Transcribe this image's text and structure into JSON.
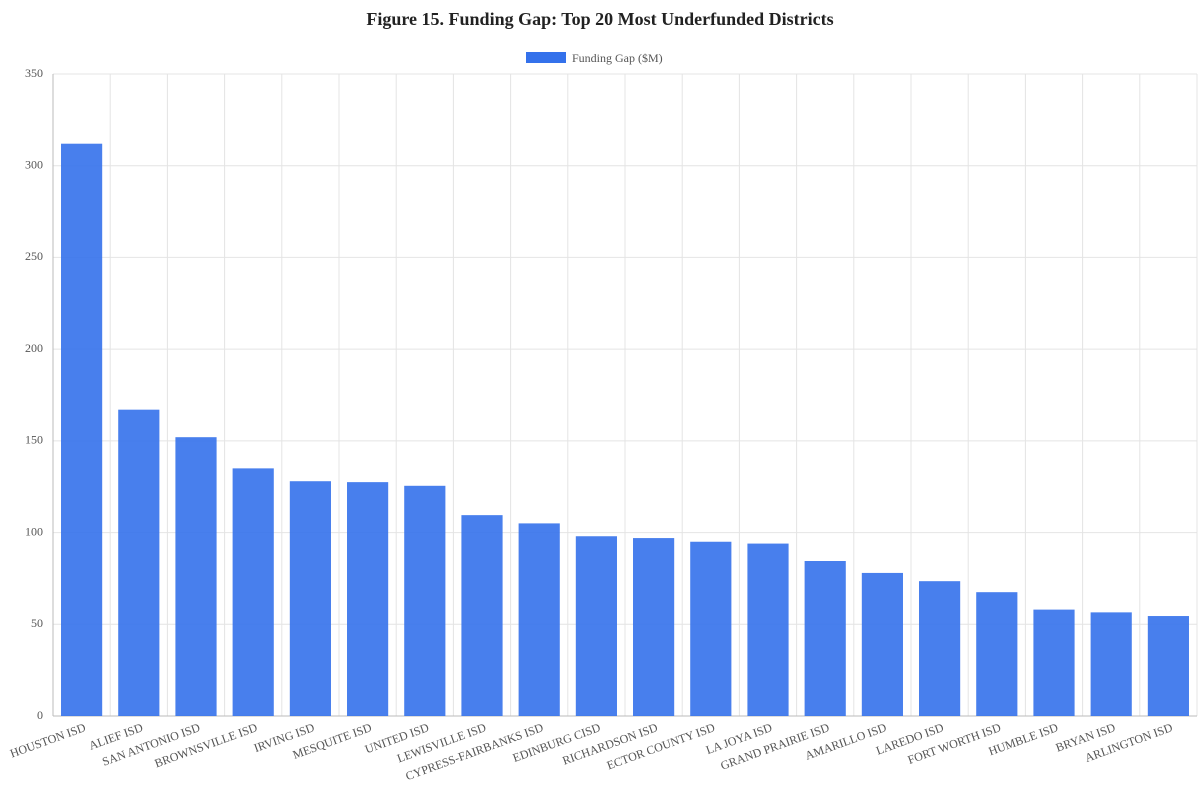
{
  "chart_data": {
    "type": "bar",
    "title": "Figure 15. Funding Gap: Top 20 Most Underfunded Districts",
    "categories": [
      "HOUSTON ISD",
      "ALIEF ISD",
      "SAN ANTONIO ISD",
      "BROWNSVILLE ISD",
      "IRVING ISD",
      "MESQUITE ISD",
      "UNITED ISD",
      "LEWISVILLE ISD",
      "CYPRESS-FAIRBANKS ISD",
      "EDINBURG CISD",
      "RICHARDSON ISD",
      "ECTOR COUNTY ISD",
      "LA JOYA ISD",
      "GRAND PRAIRIE ISD",
      "AMARILLO ISD",
      "LAREDO ISD",
      "FORT WORTH ISD",
      "HUMBLE ISD",
      "BRYAN ISD",
      "ARLINGTON ISD"
    ],
    "series": [
      {
        "name": "Funding Gap ($M)",
        "color": "#3471eb",
        "values": [
          312,
          167,
          152,
          135,
          128,
          127.5,
          125.5,
          109.5,
          105,
          98,
          97,
          95,
          94,
          84.5,
          78,
          73.5,
          67.5,
          58,
          56.5,
          54.5
        ]
      }
    ],
    "ylim": [
      0,
      350
    ],
    "yticks": [
      0,
      50,
      100,
      150,
      200,
      250,
      300,
      350
    ],
    "grid": true
  }
}
